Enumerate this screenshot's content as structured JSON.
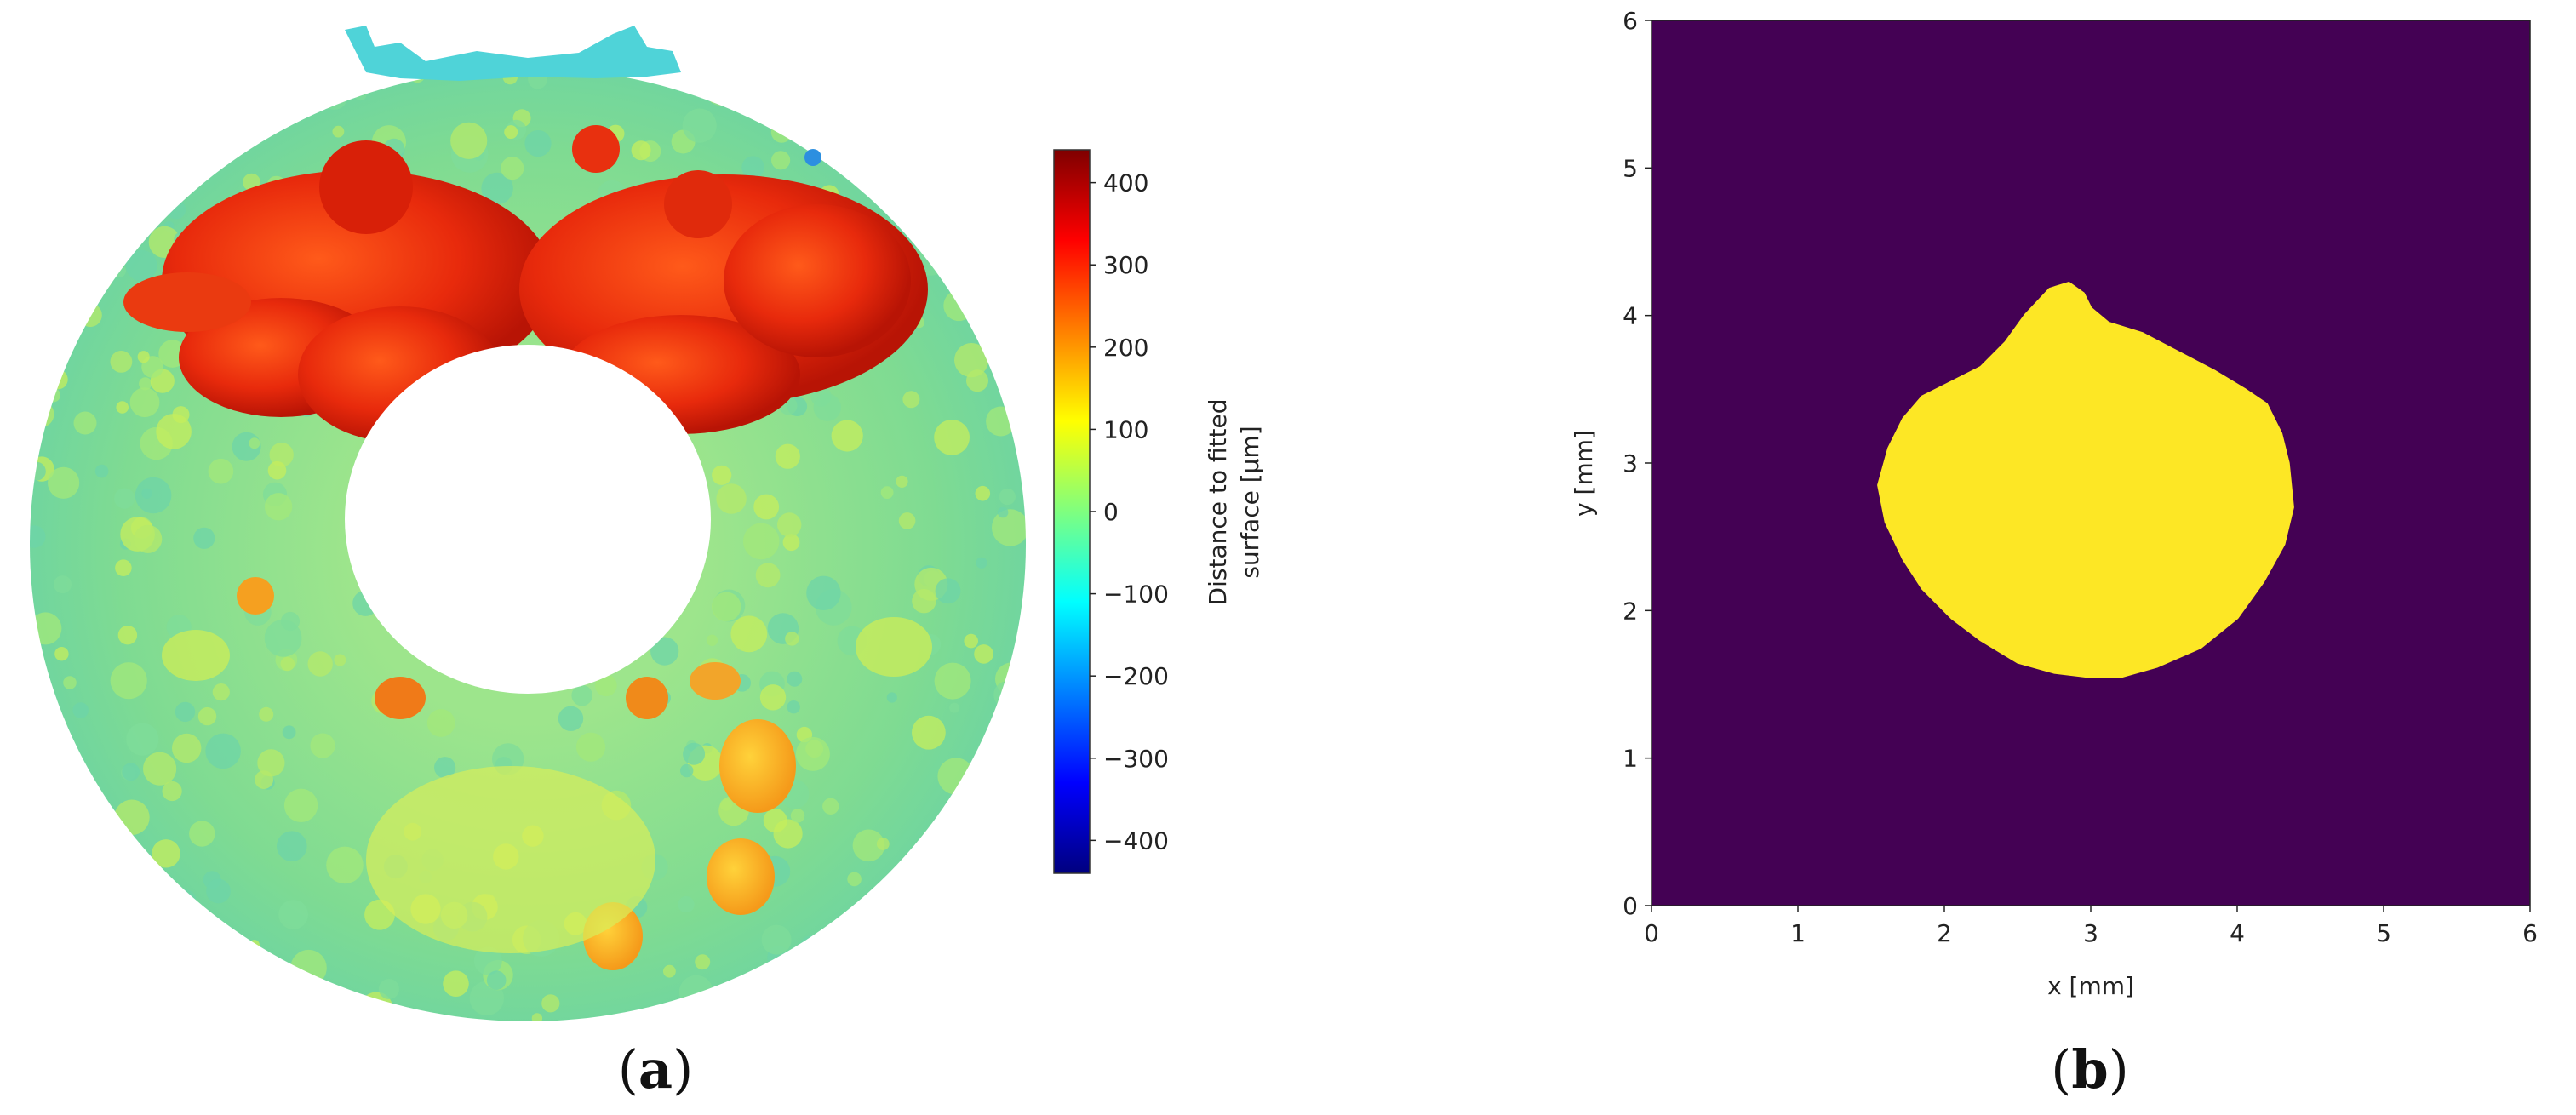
{
  "panels": {
    "a": {
      "label_open": "(",
      "label_letter": "a",
      "label_close": ")"
    },
    "b": {
      "label_open": "(",
      "label_letter": "b",
      "label_close": ")"
    }
  },
  "chart_data": [
    {
      "type": "heatmap",
      "panel": "a",
      "description_visible": "3D scan of a ring-shaped surface colored by distance to fitted surface",
      "colorbar": {
        "label_line1": "Distance to fitted",
        "label_line2": "surface [μm]",
        "range": [
          -440,
          440
        ],
        "ticks": [
          400,
          300,
          200,
          100,
          0,
          -100,
          -200,
          -300,
          -400
        ],
        "tick_labels": [
          "400",
          "300",
          "200",
          "100",
          "0",
          "−100",
          "−200",
          "−300",
          "−400"
        ],
        "colormap": "jet"
      }
    },
    {
      "type": "heatmap",
      "panel": "b",
      "title": "",
      "xlabel": "x [mm]",
      "ylabel": "y [mm]",
      "xlim": [
        0,
        6
      ],
      "ylim": [
        0,
        6
      ],
      "xticks": [
        0,
        1,
        2,
        3,
        4,
        5,
        6
      ],
      "yticks": [
        0,
        1,
        2,
        3,
        4,
        5,
        6
      ],
      "xtick_labels": [
        "0",
        "1",
        "2",
        "3",
        "4",
        "5",
        "6"
      ],
      "ytick_labels": [
        "0",
        "1",
        "2",
        "3",
        "4",
        "5",
        "6"
      ],
      "background_color": "#440154",
      "region_color": "#fde725",
      "region_outline": [
        [
          2.72,
          4.18
        ],
        [
          2.85,
          4.22
        ],
        [
          2.95,
          4.15
        ],
        [
          3.0,
          4.05
        ],
        [
          3.12,
          3.95
        ],
        [
          3.35,
          3.88
        ],
        [
          3.6,
          3.75
        ],
        [
          3.85,
          3.62
        ],
        [
          4.05,
          3.5
        ],
        [
          4.2,
          3.4
        ],
        [
          4.3,
          3.2
        ],
        [
          4.35,
          3.0
        ],
        [
          4.38,
          2.7
        ],
        [
          4.32,
          2.45
        ],
        [
          4.18,
          2.2
        ],
        [
          4.0,
          1.95
        ],
        [
          3.75,
          1.75
        ],
        [
          3.45,
          1.62
        ],
        [
          3.2,
          1.55
        ],
        [
          3.0,
          1.55
        ],
        [
          2.75,
          1.58
        ],
        [
          2.5,
          1.65
        ],
        [
          2.25,
          1.8
        ],
        [
          2.05,
          1.95
        ],
        [
          1.85,
          2.15
        ],
        [
          1.72,
          2.35
        ],
        [
          1.6,
          2.6
        ],
        [
          1.55,
          2.85
        ],
        [
          1.62,
          3.1
        ],
        [
          1.72,
          3.3
        ],
        [
          1.85,
          3.45
        ],
        [
          2.05,
          3.55
        ],
        [
          2.25,
          3.65
        ],
        [
          2.42,
          3.82
        ],
        [
          2.55,
          4.0
        ]
      ]
    }
  ],
  "colors": {
    "torus_base": "#8ee08a",
    "hot": "#e8300f",
    "background": "#ffffff"
  }
}
